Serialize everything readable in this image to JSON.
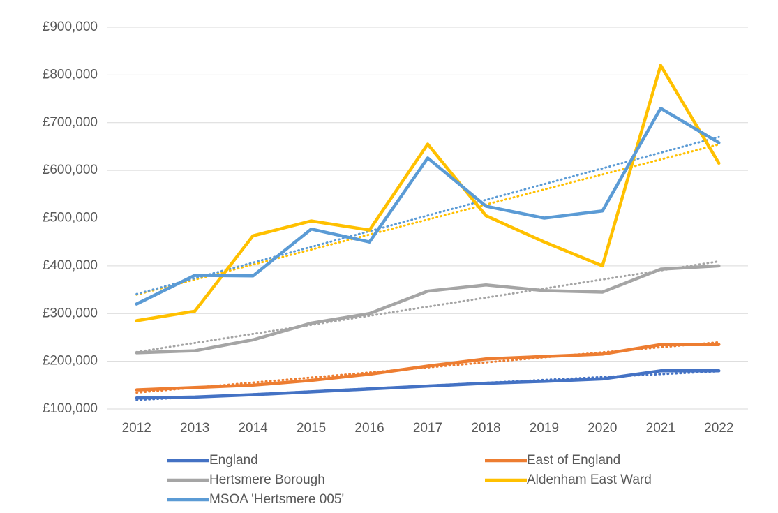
{
  "chart_data": {
    "type": "line",
    "categories": [
      "2012",
      "2013",
      "2014",
      "2015",
      "2016",
      "2017",
      "2018",
      "2019",
      "2020",
      "2021",
      "2022"
    ],
    "series": [
      {
        "name": "England",
        "color": "#4472c4",
        "values": [
          123000,
          125000,
          130000,
          136000,
          142000,
          148000,
          154000,
          158000,
          163000,
          180000,
          180000
        ]
      },
      {
        "name": "East of England",
        "color": "#ed7d31",
        "values": [
          140000,
          145000,
          150000,
          160000,
          173000,
          190000,
          205000,
          210000,
          215000,
          235000,
          235000
        ]
      },
      {
        "name": "Hertsmere Borough",
        "color": "#a5a5a5",
        "values": [
          218000,
          222000,
          245000,
          280000,
          300000,
          347000,
          360000,
          348000,
          345000,
          393000,
          400000
        ]
      },
      {
        "name": "Aldenham East Ward",
        "color": "#ffc000",
        "values": [
          285000,
          305000,
          463000,
          494000,
          475000,
          655000,
          505000,
          450000,
          400000,
          820000,
          615000
        ]
      },
      {
        "name": "MSOA 'Hertsmere 005'",
        "color": "#5b9bd5",
        "values": [
          320000,
          380000,
          379000,
          477000,
          450000,
          626000,
          525000,
          500000,
          515000,
          730000,
          658000
        ]
      }
    ],
    "trendline": "linear",
    "ylim": [
      100000,
      900000
    ],
    "yticks": [
      {
        "value": 100000,
        "label": "£100,000"
      },
      {
        "value": 200000,
        "label": "£200,000"
      },
      {
        "value": 300000,
        "label": "£300,000"
      },
      {
        "value": 400000,
        "label": "£400,000"
      },
      {
        "value": 500000,
        "label": "£500,000"
      },
      {
        "value": 600000,
        "label": "£600,000"
      },
      {
        "value": 700000,
        "label": "£700,000"
      },
      {
        "value": 800000,
        "label": "£800,000"
      },
      {
        "value": 900000,
        "label": "£900,000"
      }
    ],
    "grid": true
  }
}
